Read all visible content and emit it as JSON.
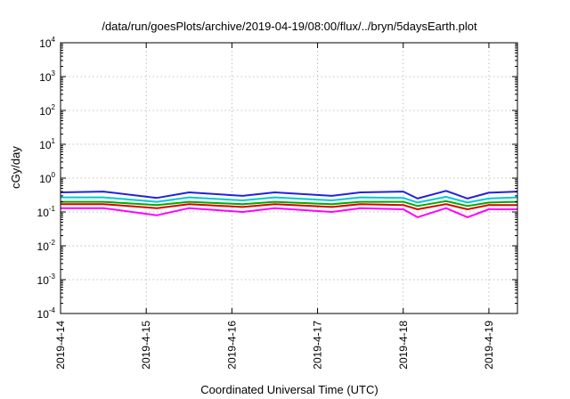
{
  "chart_data": {
    "type": "line",
    "title": "/data/run/goesPlots/archive/2019-04-19/08:00/flux/../bryn/5daysEarth.plot",
    "xlabel": "Coordinated Universal Time (UTC)",
    "ylabel": "cGy/day",
    "y_scale": "log",
    "ylim": [
      0.0001,
      10000
    ],
    "x_range": [
      "2019-04-14T00:00",
      "2019-04-19T08:00"
    ],
    "grid": true,
    "y_ticks": [
      {
        "value": 0.0001,
        "base": "10",
        "exp": "-4"
      },
      {
        "value": 0.001,
        "base": "10",
        "exp": "-3"
      },
      {
        "value": 0.01,
        "base": "10",
        "exp": "-2"
      },
      {
        "value": 0.1,
        "base": "10",
        "exp": "-1"
      },
      {
        "value": 1,
        "base": "10",
        "exp": "0"
      },
      {
        "value": 10,
        "base": "10",
        "exp": "1"
      },
      {
        "value": 100,
        "base": "10",
        "exp": "2"
      },
      {
        "value": 1000,
        "base": "10",
        "exp": "3"
      },
      {
        "value": 10000,
        "base": "10",
        "exp": "4"
      }
    ],
    "x_ticks": [
      "2019-4-14",
      "2019-4-15",
      "2019-4-16",
      "2019-4-17",
      "2019-4-18",
      "2019-4-19"
    ],
    "series": [
      {
        "color": "#ff00ff",
        "x": [
          "2019-04-14T00:00",
          "2019-04-14T12:00",
          "2019-04-15T03:00",
          "2019-04-15T12:00",
          "2019-04-16T03:00",
          "2019-04-16T12:00",
          "2019-04-17T04:00",
          "2019-04-17T12:00",
          "2019-04-18T00:00",
          "2019-04-18T04:00",
          "2019-04-18T12:00",
          "2019-04-18T18:00",
          "2019-04-19T00:00",
          "2019-04-19T08:00"
        ],
        "y": [
          0.13,
          0.13,
          0.08,
          0.13,
          0.1,
          0.13,
          0.1,
          0.13,
          0.12,
          0.07,
          0.13,
          0.07,
          0.12,
          0.12
        ]
      },
      {
        "color": "#dd0000",
        "x": [
          "2019-04-14T00:00",
          "2019-04-14T12:00",
          "2019-04-15T03:00",
          "2019-04-15T12:00",
          "2019-04-16T03:00",
          "2019-04-16T12:00",
          "2019-04-17T04:00",
          "2019-04-17T12:00",
          "2019-04-18T00:00",
          "2019-04-18T04:00",
          "2019-04-18T12:00",
          "2019-04-18T18:00",
          "2019-04-19T00:00",
          "2019-04-19T08:00"
        ],
        "y": [
          0.17,
          0.17,
          0.13,
          0.17,
          0.14,
          0.17,
          0.14,
          0.17,
          0.16,
          0.12,
          0.17,
          0.12,
          0.16,
          0.16
        ]
      },
      {
        "color": "#00aa00",
        "x": [
          "2019-04-14T00:00",
          "2019-04-14T12:00",
          "2019-04-15T03:00",
          "2019-04-15T12:00",
          "2019-04-16T03:00",
          "2019-04-16T12:00",
          "2019-04-17T04:00",
          "2019-04-17T12:00",
          "2019-04-18T00:00",
          "2019-04-18T04:00",
          "2019-04-18T12:00",
          "2019-04-18T18:00",
          "2019-04-19T00:00",
          "2019-04-19T08:00"
        ],
        "y": [
          0.2,
          0.2,
          0.16,
          0.2,
          0.17,
          0.2,
          0.17,
          0.2,
          0.2,
          0.15,
          0.21,
          0.15,
          0.19,
          0.2
        ]
      },
      {
        "color": "#00cccc",
        "x": [
          "2019-04-14T00:00",
          "2019-04-14T12:00",
          "2019-04-15T03:00",
          "2019-04-15T12:00",
          "2019-04-16T03:00",
          "2019-04-16T12:00",
          "2019-04-17T04:00",
          "2019-04-17T12:00",
          "2019-04-18T00:00",
          "2019-04-18T04:00",
          "2019-04-18T12:00",
          "2019-04-18T18:00",
          "2019-04-19T00:00",
          "2019-04-19T08:00"
        ],
        "y": [
          0.27,
          0.27,
          0.2,
          0.27,
          0.22,
          0.27,
          0.22,
          0.27,
          0.26,
          0.19,
          0.28,
          0.19,
          0.25,
          0.27
        ]
      },
      {
        "color": "#2222dd",
        "x": [
          "2019-04-14T00:00",
          "2019-04-14T12:00",
          "2019-04-15T03:00",
          "2019-04-15T12:00",
          "2019-04-16T03:00",
          "2019-04-16T12:00",
          "2019-04-17T04:00",
          "2019-04-17T12:00",
          "2019-04-18T00:00",
          "2019-04-18T04:00",
          "2019-04-18T12:00",
          "2019-04-18T18:00",
          "2019-04-19T00:00",
          "2019-04-19T08:00"
        ],
        "y": [
          0.38,
          0.4,
          0.26,
          0.38,
          0.3,
          0.38,
          0.3,
          0.38,
          0.4,
          0.25,
          0.42,
          0.25,
          0.37,
          0.4
        ]
      }
    ]
  }
}
